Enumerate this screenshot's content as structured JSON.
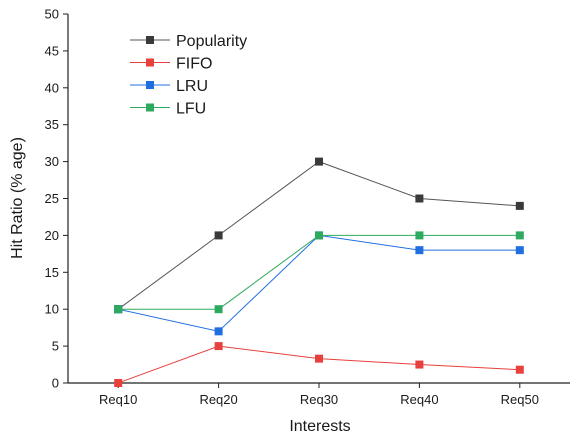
{
  "chart_data": {
    "type": "line",
    "title": "",
    "xlabel": "Interests",
    "ylabel": "Hit Ratio (% age)",
    "categories": [
      "Req10",
      "Req20",
      "Req30",
      "Req40",
      "Req50"
    ],
    "ylim": [
      0,
      50
    ],
    "yticks": [
      0,
      5,
      10,
      15,
      20,
      25,
      30,
      35,
      40,
      45,
      50
    ],
    "grid": false,
    "legend_position": "top-left",
    "series": [
      {
        "name": "Popularity",
        "color": "#3a3a3a",
        "line_color": "#555555",
        "values": [
          10,
          20,
          30,
          25,
          24
        ]
      },
      {
        "name": "FIFO",
        "color": "#e8403c",
        "line_color": "#e8403c",
        "values": [
          0,
          5,
          3.3,
          2.5,
          1.8
        ]
      },
      {
        "name": "LRU",
        "color": "#1f6fe0",
        "line_color": "#1f6fe0",
        "values": [
          10,
          7,
          20,
          18,
          18
        ]
      },
      {
        "name": "LFU",
        "color": "#2eaa5e",
        "line_color": "#2eaa5e",
        "values": [
          10,
          10,
          20,
          20,
          20
        ]
      }
    ]
  }
}
